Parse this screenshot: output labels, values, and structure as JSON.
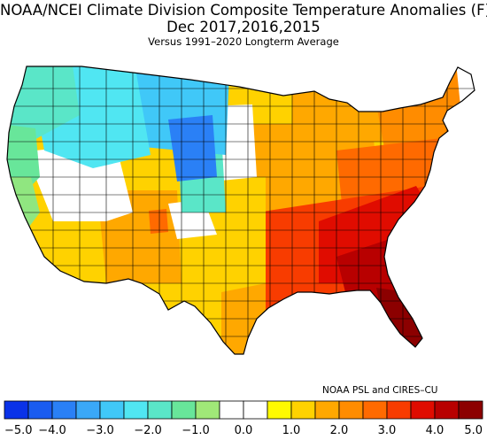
{
  "title_line1": "NOAA/NCEI Climate Division Composite Temperature Anomalies (F)",
  "title_line2": "Dec   2017,2016,2015",
  "title_line3": "Versus 1991–2020 Longterm Average",
  "credit": "NOAA PSL and CIRES–CU",
  "colorbar": {
    "bin_colors": [
      "#0a32e8",
      "#1a5cf0",
      "#2a80f6",
      "#3aa8f8",
      "#40c8f8",
      "#50e6f2",
      "#5ae6c8",
      "#68e69a",
      "#a0e878",
      "#ffffff",
      "#ffffff",
      "#fffa00",
      "#ffd200",
      "#ffa800",
      "#ff8c00",
      "#ff6a00",
      "#f83c00",
      "#e00c00",
      "#b80000",
      "#8c0000"
    ],
    "tick_labels": [
      "−5.0",
      "−4.0",
      "−3.0",
      "−2.0",
      "−1.0",
      "0.0",
      "1.0",
      "2.0",
      "3.0",
      "4.0",
      "5.0"
    ]
  },
  "regions": [
    {
      "name": "pacific-northwest-coast",
      "color": "#68e69a"
    },
    {
      "name": "california-coast",
      "color": "#90e680"
    },
    {
      "name": "washington-west",
      "color": "#5ae6c8"
    },
    {
      "name": "northern-rockies",
      "color": "#50e6f2"
    },
    {
      "name": "montana-plains",
      "color": "#40c8f8"
    },
    {
      "name": "dakotas-core",
      "color": "#2a80f6"
    },
    {
      "name": "nebraska-transition",
      "color": "#5ae6c8"
    },
    {
      "name": "near-normal-great-basin",
      "color": "#ffffff"
    },
    {
      "name": "near-normal-northern-plains",
      "color": "#ffffff"
    },
    {
      "name": "near-normal-southern-plains",
      "color": "#ffffff"
    },
    {
      "name": "near-normal-new-england",
      "color": "#ffffff"
    },
    {
      "name": "southwest-desert",
      "color": "#ffd200"
    },
    {
      "name": "four-corners",
      "color": "#ffa800"
    },
    {
      "name": "colorado-high",
      "color": "#ff6a00"
    },
    {
      "name": "texas-plains",
      "color": "#ffd200"
    },
    {
      "name": "south-texas",
      "color": "#ffa800"
    },
    {
      "name": "central-plains",
      "color": "#ffd200"
    },
    {
      "name": "midwest",
      "color": "#ffa800"
    },
    {
      "name": "great-lakes",
      "color": "#ffa800"
    },
    {
      "name": "northeast",
      "color": "#ff8c00"
    },
    {
      "name": "mid-atlantic",
      "color": "#ff6a00"
    },
    {
      "name": "southeast-outer",
      "color": "#f83c00"
    },
    {
      "name": "carolinas-georgia",
      "color": "#e00c00"
    },
    {
      "name": "deep-south-core",
      "color": "#b80000"
    },
    {
      "name": "florida-peninsula",
      "color": "#8c0000"
    },
    {
      "name": "upper-midwest-north",
      "color": "#ffd200"
    }
  ]
}
